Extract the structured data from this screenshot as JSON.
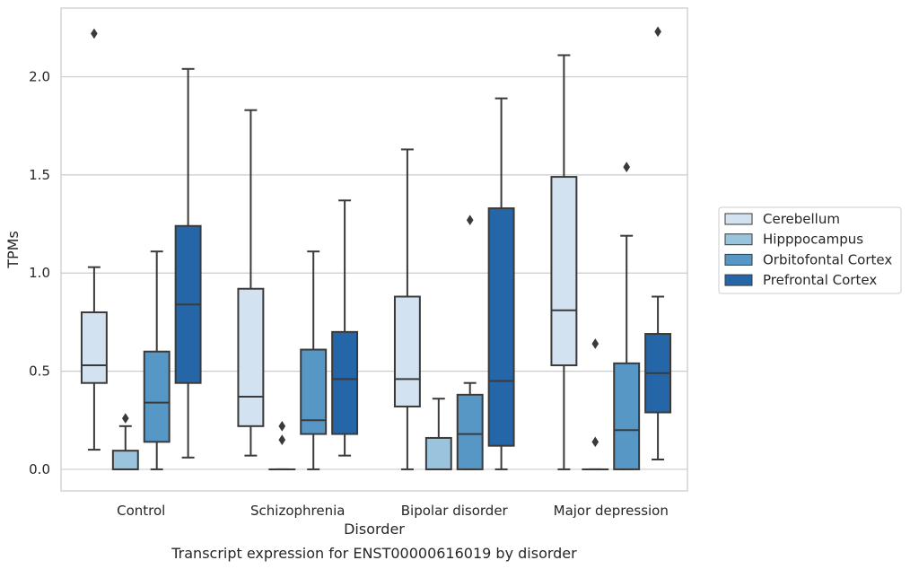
{
  "caption": "Transcript expression for ENST00000616019 by disorder",
  "chart_data": {
    "type": "box",
    "xlabel": "Disorder",
    "ylabel": "TPMs",
    "ylim": [
      -0.11,
      2.35
    ],
    "yticks": [
      0.0,
      0.5,
      1.0,
      1.5,
      2.0
    ],
    "ytick_labels": [
      "0.0",
      "0.5",
      "1.0",
      "1.5",
      "2.0"
    ],
    "grid": "horizontal",
    "legend_position": "right",
    "categories": [
      "Control",
      "Schizophrenia",
      "Bipolar disorder",
      "Major depression"
    ],
    "series": [
      {
        "name": "Cerebellum",
        "color": "#d3e2f1",
        "boxes": [
          {
            "whislo": 0.1,
            "q1": 0.44,
            "med": 0.53,
            "q3": 0.8,
            "whishi": 1.03,
            "fliers": [
              2.22
            ]
          },
          {
            "whislo": 0.07,
            "q1": 0.22,
            "med": 0.37,
            "q3": 0.92,
            "whishi": 1.83,
            "fliers": []
          },
          {
            "whislo": 0.0,
            "q1": 0.32,
            "med": 0.46,
            "q3": 0.88,
            "whishi": 1.63,
            "fliers": []
          },
          {
            "whislo": 0.0,
            "q1": 0.53,
            "med": 0.81,
            "q3": 1.49,
            "whishi": 2.11,
            "fliers": []
          }
        ]
      },
      {
        "name": "Hipppocampus",
        "color": "#9ac3de",
        "boxes": [
          {
            "whislo": 0.0,
            "q1": 0.0,
            "med": 0.0,
            "q3": 0.095,
            "whishi": 0.22,
            "fliers": [
              0.26
            ]
          },
          {
            "whislo": 0.0,
            "q1": 0.0,
            "med": 0.0,
            "q3": 0.0,
            "whishi": 0.0,
            "fliers": [
              0.15,
              0.22
            ]
          },
          {
            "whislo": 0.0,
            "q1": 0.0,
            "med": 0.0,
            "q3": 0.16,
            "whishi": 0.36,
            "fliers": []
          },
          {
            "whislo": 0.0,
            "q1": 0.0,
            "med": 0.0,
            "q3": 0.0,
            "whishi": 0.0,
            "fliers": [
              0.14,
              0.64
            ]
          }
        ]
      },
      {
        "name": "Orbitofontal Cortex",
        "color": "#5697c6",
        "boxes": [
          {
            "whislo": 0.0,
            "q1": 0.14,
            "med": 0.34,
            "q3": 0.6,
            "whishi": 1.11,
            "fliers": []
          },
          {
            "whislo": 0.0,
            "q1": 0.18,
            "med": 0.25,
            "q3": 0.61,
            "whishi": 1.11,
            "fliers": []
          },
          {
            "whislo": 0.0,
            "q1": 0.0,
            "med": 0.18,
            "q3": 0.38,
            "whishi": 0.44,
            "fliers": [
              1.27
            ]
          },
          {
            "whislo": 0.0,
            "q1": 0.0,
            "med": 0.2,
            "q3": 0.54,
            "whishi": 1.19,
            "fliers": [
              1.54
            ]
          }
        ]
      },
      {
        "name": "Prefrontal Cortex",
        "color": "#2466a8",
        "boxes": [
          {
            "whislo": 0.06,
            "q1": 0.44,
            "med": 0.84,
            "q3": 1.24,
            "whishi": 2.04,
            "fliers": []
          },
          {
            "whislo": 0.07,
            "q1": 0.18,
            "med": 0.46,
            "q3": 0.7,
            "whishi": 1.37,
            "fliers": []
          },
          {
            "whislo": 0.0,
            "q1": 0.12,
            "med": 0.45,
            "q3": 1.33,
            "whishi": 1.89,
            "fliers": []
          },
          {
            "whislo": 0.05,
            "q1": 0.29,
            "med": 0.49,
            "q3": 0.69,
            "whishi": 0.88,
            "fliers": [
              2.23
            ]
          }
        ]
      }
    ]
  }
}
